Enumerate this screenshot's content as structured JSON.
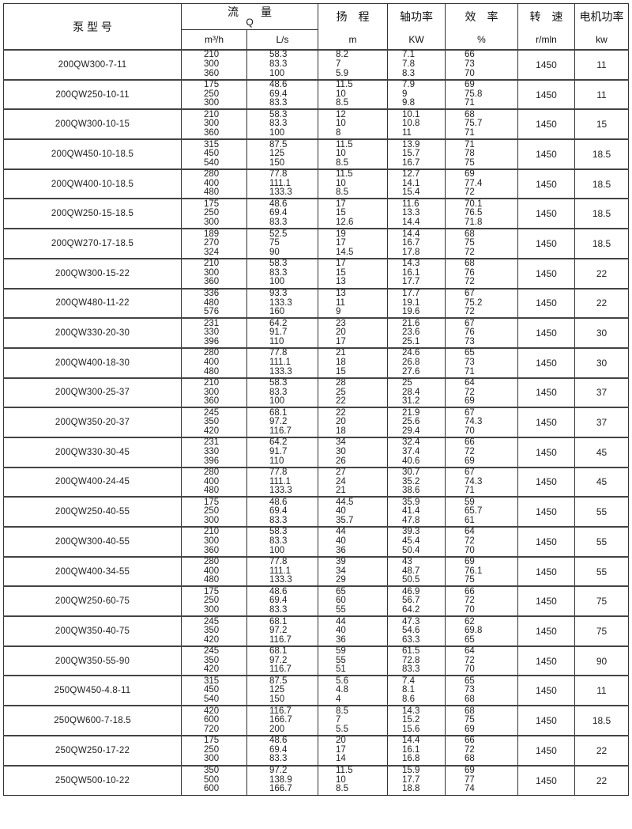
{
  "header": {
    "model": "泵 型 号",
    "flow": "流　　量",
    "flow_symbol": "Q",
    "head": "扬　程",
    "shaft_power": "轴功率",
    "efficiency": "效　率",
    "speed": "转　速",
    "motor_power": "电机功率",
    "units": {
      "flow_m3h": "m³/h",
      "flow_ls": "L/s",
      "head": "m",
      "shaft_power": "KW",
      "efficiency": "%",
      "speed": "r/mln",
      "motor_power": "kw"
    }
  },
  "rows": [
    {
      "model": "200QW300-7-11",
      "q_m3h": [
        "210",
        "300",
        "360"
      ],
      "q_ls": [
        "58.3",
        "83.3",
        "100"
      ],
      "head": [
        "8.2",
        "7",
        "5.9"
      ],
      "power": [
        "7.1",
        "7.8",
        "8.3"
      ],
      "eff": [
        "66",
        "73",
        "70"
      ],
      "speed": "1450",
      "motor": "11"
    },
    {
      "model": "200QW250-10-11",
      "q_m3h": [
        "175",
        "250",
        "300"
      ],
      "q_ls": [
        "48.6",
        "69.4",
        "83.3"
      ],
      "head": [
        "11.5",
        "10",
        "8.5"
      ],
      "power": [
        "7.9",
        "9",
        "9.8"
      ],
      "eff": [
        "69",
        "75.8",
        "71"
      ],
      "speed": "1450",
      "motor": "11"
    },
    {
      "model": "200QW300-10-15",
      "q_m3h": [
        "210",
        "300",
        "360"
      ],
      "q_ls": [
        "58.3",
        "83.3",
        "100"
      ],
      "head": [
        "12",
        "10",
        "8"
      ],
      "power": [
        "10.1",
        "10.8",
        "11"
      ],
      "eff": [
        "68",
        "75.7",
        "71"
      ],
      "speed": "1450",
      "motor": "15"
    },
    {
      "model": "200QW450-10-18.5",
      "q_m3h": [
        "315",
        "450",
        "540"
      ],
      "q_ls": [
        "87.5",
        "125",
        "150"
      ],
      "head": [
        "11.5",
        "10",
        "8.5"
      ],
      "power": [
        "13.9",
        "15.7",
        "16.7"
      ],
      "eff": [
        "71",
        "78",
        "75"
      ],
      "speed": "1450",
      "motor": "18.5"
    },
    {
      "model": "200QW400-10-18.5",
      "q_m3h": [
        "280",
        "400",
        "480"
      ],
      "q_ls": [
        "77.8",
        "111.1",
        "133.3"
      ],
      "head": [
        "11.5",
        "10",
        "8.5"
      ],
      "power": [
        "12.7",
        "14.1",
        "15.4"
      ],
      "eff": [
        "69",
        "77.4",
        "72"
      ],
      "speed": "1450",
      "motor": "18.5"
    },
    {
      "model": "200QW250-15-18.5",
      "q_m3h": [
        "175",
        "250",
        "300"
      ],
      "q_ls": [
        "48.6",
        "69.4",
        "83.3"
      ],
      "head": [
        "17",
        "15",
        "12.6"
      ],
      "power": [
        "11.6",
        "13.3",
        "14.4"
      ],
      "eff": [
        "70.1",
        "76.5",
        "71.8"
      ],
      "speed": "1450",
      "motor": "18.5"
    },
    {
      "model": "200QW270-17-18.5",
      "q_m3h": [
        "189",
        "270",
        "324"
      ],
      "q_ls": [
        "52.5",
        "75",
        "90"
      ],
      "head": [
        "19",
        "17",
        "14.5"
      ],
      "power": [
        "14.4",
        "16.7",
        "17.8"
      ],
      "eff": [
        "68",
        "75",
        "72"
      ],
      "speed": "1450",
      "motor": "18.5"
    },
    {
      "model": "200QW300-15-22",
      "q_m3h": [
        "210",
        "300",
        "360"
      ],
      "q_ls": [
        "58.3",
        "83.3",
        "100"
      ],
      "head": [
        "17",
        "15",
        "13"
      ],
      "power": [
        "14.3",
        "16.1",
        "17.7"
      ],
      "eff": [
        "68",
        "76",
        "72"
      ],
      "speed": "1450",
      "motor": "22"
    },
    {
      "model": "200QW480-11-22",
      "q_m3h": [
        "336",
        "480",
        "576"
      ],
      "q_ls": [
        "93.3",
        "133.3",
        "160"
      ],
      "head": [
        "13",
        "11",
        "9"
      ],
      "power": [
        "17.7",
        "19.1",
        "19.6"
      ],
      "eff": [
        "67",
        "75.2",
        "72"
      ],
      "speed": "1450",
      "motor": "22"
    },
    {
      "model": "200QW330-20-30",
      "q_m3h": [
        "231",
        "330",
        "396"
      ],
      "q_ls": [
        "64.2",
        "91.7",
        "110"
      ],
      "head": [
        "23",
        "20",
        "17"
      ],
      "power": [
        "21.6",
        "23.6",
        "25.1"
      ],
      "eff": [
        "67",
        "76",
        "73"
      ],
      "speed": "1450",
      "motor": "30"
    },
    {
      "model": "200QW400-18-30",
      "q_m3h": [
        "280",
        "400",
        "480"
      ],
      "q_ls": [
        "77.8",
        "111.1",
        "133.3"
      ],
      "head": [
        "21",
        "18",
        "15"
      ],
      "power": [
        "24.6",
        "26.8",
        "27.6"
      ],
      "eff": [
        "65",
        "73",
        "71"
      ],
      "speed": "1450",
      "motor": "30"
    },
    {
      "model": "200QW300-25-37",
      "q_m3h": [
        "210",
        "300",
        "360"
      ],
      "q_ls": [
        "58.3",
        "83.3",
        "100"
      ],
      "head": [
        "28",
        "25",
        "22"
      ],
      "power": [
        "25",
        "28.4",
        "31.2"
      ],
      "eff": [
        "64",
        "72",
        "69"
      ],
      "speed": "1450",
      "motor": "37"
    },
    {
      "model": "200QW350-20-37",
      "q_m3h": [
        "245",
        "350",
        "420"
      ],
      "q_ls": [
        "68.1",
        "97.2",
        "116.7"
      ],
      "head": [
        "22",
        "20",
        "18"
      ],
      "power": [
        "21.9",
        "25.6",
        "29.4"
      ],
      "eff": [
        "67",
        "74.3",
        "70"
      ],
      "speed": "1450",
      "motor": "37"
    },
    {
      "model": "200QW330-30-45",
      "q_m3h": [
        "231",
        "330",
        "396"
      ],
      "q_ls": [
        "64.2",
        "91.7",
        "110"
      ],
      "head": [
        "34",
        "30",
        "26"
      ],
      "power": [
        "32.4",
        "37.4",
        "40.6"
      ],
      "eff": [
        "66",
        "72",
        "69"
      ],
      "speed": "1450",
      "motor": "45"
    },
    {
      "model": "200QW400-24-45",
      "q_m3h": [
        "280",
        "400",
        "480"
      ],
      "q_ls": [
        "77.8",
        "111.1",
        "133.3"
      ],
      "head": [
        "27",
        "24",
        "21"
      ],
      "power": [
        "30.7",
        "35.2",
        "38.6"
      ],
      "eff": [
        "67",
        "74.3",
        "71"
      ],
      "speed": "1450",
      "motor": "45"
    },
    {
      "model": "200QW250-40-55",
      "q_m3h": [
        "175",
        "250",
        "300"
      ],
      "q_ls": [
        "48.6",
        "69.4",
        "83.3"
      ],
      "head": [
        "44.5",
        "40",
        "35.7"
      ],
      "power": [
        "35.9",
        "41.4",
        "47.8"
      ],
      "eff": [
        "59",
        "65.7",
        "61"
      ],
      "speed": "1450",
      "motor": "55"
    },
    {
      "model": "200QW300-40-55",
      "q_m3h": [
        "210",
        "300",
        "360"
      ],
      "q_ls": [
        "58.3",
        "83.3",
        "100"
      ],
      "head": [
        "44",
        "40",
        "36"
      ],
      "power": [
        "39.3",
        "45.4",
        "50.4"
      ],
      "eff": [
        "64",
        "72",
        "70"
      ],
      "speed": "1450",
      "motor": "55"
    },
    {
      "model": "200QW400-34-55",
      "q_m3h": [
        "280",
        "400",
        "480"
      ],
      "q_ls": [
        "77.8",
        "111.1",
        "133.3"
      ],
      "head": [
        "39",
        "34",
        "29"
      ],
      "power": [
        "43",
        "48.7",
        "50.5"
      ],
      "eff": [
        "69",
        "76.1",
        "75"
      ],
      "speed": "1450",
      "motor": "55"
    },
    {
      "model": "200QW250-60-75",
      "q_m3h": [
        "175",
        "250",
        "300"
      ],
      "q_ls": [
        "48.6",
        "69.4",
        "83.3"
      ],
      "head": [
        "65",
        "60",
        "55"
      ],
      "power": [
        "46.9",
        "56.7",
        "64.2"
      ],
      "eff": [
        "66",
        "72",
        "70"
      ],
      "speed": "1450",
      "motor": "75"
    },
    {
      "model": "200QW350-40-75",
      "q_m3h": [
        "245",
        "350",
        "420"
      ],
      "q_ls": [
        "68.1",
        "97.2",
        "116.7"
      ],
      "head": [
        "44",
        "40",
        "36"
      ],
      "power": [
        "47.3",
        "54.6",
        "63.3"
      ],
      "eff": [
        "62",
        "69.8",
        "65"
      ],
      "speed": "1450",
      "motor": "75"
    },
    {
      "model": "200QW350-55-90",
      "q_m3h": [
        "245",
        "350",
        "420"
      ],
      "q_ls": [
        "68.1",
        "97.2",
        "116.7"
      ],
      "head": [
        "59",
        "55",
        "51"
      ],
      "power": [
        "61.5",
        "72.8",
        "83.3"
      ],
      "eff": [
        "64",
        "72",
        "70"
      ],
      "speed": "1450",
      "motor": "90"
    },
    {
      "model": "250QW450-4.8-11",
      "q_m3h": [
        "315",
        "450",
        "540"
      ],
      "q_ls": [
        "87.5",
        "125",
        "150"
      ],
      "head": [
        "5.6",
        "4.8",
        "4"
      ],
      "power": [
        "7.4",
        "8.1",
        "8.6"
      ],
      "eff": [
        "65",
        "73",
        "68"
      ],
      "speed": "1450",
      "motor": "11"
    },
    {
      "model": "250QW600-7-18.5",
      "q_m3h": [
        "420",
        "600",
        "720"
      ],
      "q_ls": [
        "116.7",
        "166.7",
        "200"
      ],
      "head": [
        "8.5",
        "7",
        "5.5"
      ],
      "power": [
        "14.3",
        "15.2",
        "15.6"
      ],
      "eff": [
        "68",
        "75",
        "69"
      ],
      "speed": "1450",
      "motor": "18.5"
    },
    {
      "model": "250QW250-17-22",
      "q_m3h": [
        "175",
        "250",
        "300"
      ],
      "q_ls": [
        "48.6",
        "69.4",
        "83.3"
      ],
      "head": [
        "20",
        "17",
        "14"
      ],
      "power": [
        "14.4",
        "16.1",
        "16.8"
      ],
      "eff": [
        "66",
        "72",
        "68"
      ],
      "speed": "1450",
      "motor": "22"
    },
    {
      "model": "250QW500-10-22",
      "q_m3h": [
        "350",
        "500",
        "600"
      ],
      "q_ls": [
        "97.2",
        "138.9",
        "166.7"
      ],
      "head": [
        "11.5",
        "10",
        "8.5"
      ],
      "power": [
        "15.9",
        "17.7",
        "18.8"
      ],
      "eff": [
        "69",
        "77",
        "74"
      ],
      "speed": "1450",
      "motor": "22"
    }
  ]
}
